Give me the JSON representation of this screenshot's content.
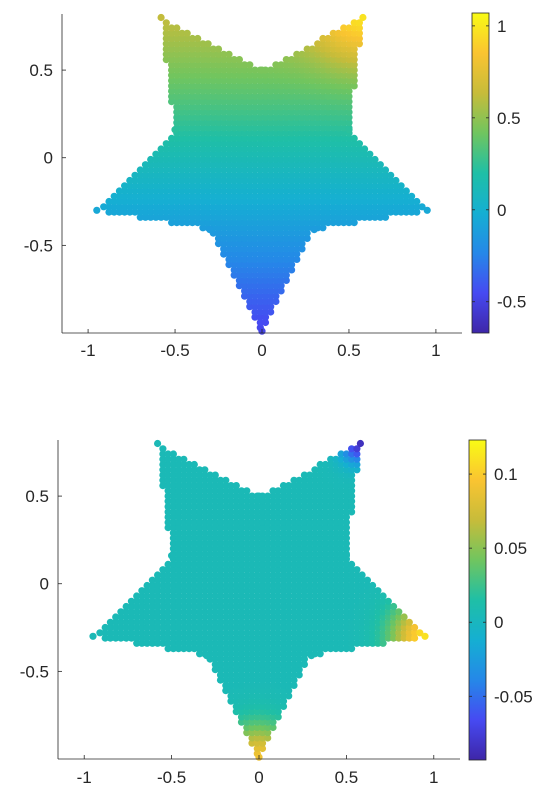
{
  "chart_data": [
    {
      "type": "heatmap",
      "shape": "star",
      "title": "",
      "xlabel": "",
      "ylabel": "",
      "xlim": [
        -1.15,
        1.15
      ],
      "ylim": [
        -1.0,
        0.82
      ],
      "x_ticks": [
        -1,
        -0.5,
        0,
        0.5,
        1
      ],
      "x_tick_labels": [
        "-1",
        "-0.5",
        "0",
        "0.5",
        "1"
      ],
      "y_ticks": [
        -0.5,
        0,
        0.5
      ],
      "y_tick_labels": [
        "-0.5",
        "0",
        "0.5"
      ],
      "colorbar": {
        "limits": [
          -0.67,
          1.07
        ],
        "ticks": [
          -0.5,
          0,
          0.5,
          1
        ],
        "tick_labels": [
          "-0.5",
          "0",
          "0.5",
          "1"
        ],
        "colormap": "parula"
      },
      "field_description": "value increases with y; highest at upper-right star tip",
      "grid": false
    },
    {
      "type": "heatmap",
      "shape": "star",
      "title": "",
      "xlabel": "",
      "ylabel": "",
      "xlim": [
        -1.15,
        1.15
      ],
      "ylim": [
        -1.0,
        0.82
      ],
      "x_ticks": [
        -1,
        -0.5,
        0,
        0.5,
        1
      ],
      "x_tick_labels": [
        "-1",
        "-0.5",
        "0",
        "0.5",
        "1"
      ],
      "y_ticks": [
        -0.5,
        0,
        0.5
      ],
      "y_tick_labels": [
        "-0.5",
        "0",
        "0.5"
      ],
      "colorbar": {
        "limits": [
          -0.093,
          0.123
        ],
        "ticks": [
          -0.05,
          0,
          0.05,
          0.1
        ],
        "tick_labels": [
          "-0.05",
          "0",
          "0.05",
          "0.1"
        ],
        "colormap": "parula"
      },
      "field_description": "near zero everywhere; positive at lower-right and bottom tips, negative at upper-right tip",
      "grid": false
    }
  ]
}
